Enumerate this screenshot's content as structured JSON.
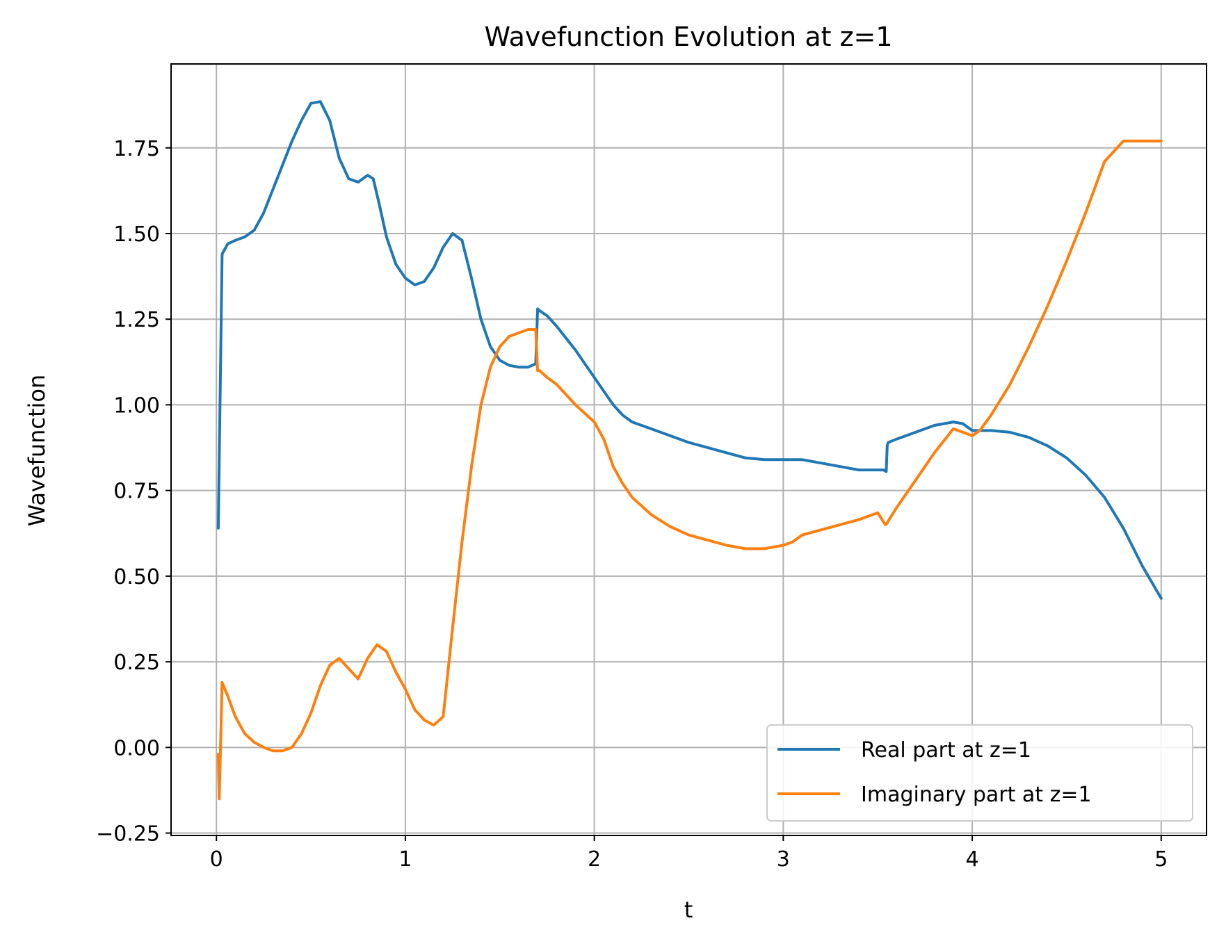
{
  "chart_data": {
    "type": "line",
    "title": "Wavefunction Evolution at z=1",
    "xlabel": "t",
    "ylabel": "Wavefunction",
    "xlim": [
      -0.24,
      5.24
    ],
    "ylim": [
      -0.257,
      1.995
    ],
    "xticks": [
      0,
      1,
      2,
      3,
      4,
      5
    ],
    "xtick_labels": [
      "0",
      "1",
      "2",
      "3",
      "4",
      "5"
    ],
    "yticks": [
      -0.25,
      0,
      0.25,
      0.5,
      0.75,
      1.0,
      1.25,
      1.5,
      1.75
    ],
    "ytick_labels": [
      "−0.25",
      "0.00",
      "0.25",
      "0.50",
      "0.75",
      "1.00",
      "1.25",
      "1.50",
      "1.75"
    ],
    "grid": true,
    "legend_position": "lower-right",
    "series": [
      {
        "name": "Real part at z=1",
        "color": "#1f77b4",
        "x": [
          0.01,
          0.03,
          0.06,
          0.1,
          0.15,
          0.2,
          0.25,
          0.3,
          0.35,
          0.4,
          0.45,
          0.5,
          0.55,
          0.6,
          0.65,
          0.7,
          0.75,
          0.8,
          0.83,
          0.86,
          0.9,
          0.95,
          1.0,
          1.05,
          1.1,
          1.15,
          1.2,
          1.25,
          1.3,
          1.35,
          1.4,
          1.45,
          1.5,
          1.55,
          1.6,
          1.65,
          1.69,
          1.7,
          1.71,
          1.75,
          1.8,
          1.9,
          2.0,
          2.1,
          2.15,
          2.2,
          2.3,
          2.5,
          2.7,
          2.8,
          2.9,
          3.0,
          3.1,
          3.2,
          3.3,
          3.4,
          3.5,
          3.53,
          3.545,
          3.55,
          3.555,
          3.6,
          3.7,
          3.8,
          3.9,
          3.95,
          4.0,
          4.05,
          4.1,
          4.2,
          4.3,
          4.4,
          4.5,
          4.6,
          4.7,
          4.8,
          4.9,
          5.0
        ],
        "y": [
          0.64,
          1.44,
          1.47,
          1.48,
          1.49,
          1.51,
          1.56,
          1.63,
          1.7,
          1.77,
          1.83,
          1.88,
          1.885,
          1.83,
          1.72,
          1.66,
          1.65,
          1.67,
          1.66,
          1.59,
          1.49,
          1.41,
          1.37,
          1.35,
          1.36,
          1.4,
          1.46,
          1.5,
          1.48,
          1.37,
          1.25,
          1.17,
          1.13,
          1.115,
          1.11,
          1.11,
          1.12,
          1.28,
          1.275,
          1.26,
          1.23,
          1.16,
          1.08,
          1.0,
          0.97,
          0.95,
          0.93,
          0.89,
          0.86,
          0.845,
          0.84,
          0.84,
          0.84,
          0.83,
          0.82,
          0.81,
          0.81,
          0.81,
          0.805,
          0.88,
          0.89,
          0.9,
          0.92,
          0.94,
          0.95,
          0.945,
          0.925,
          0.925,
          0.925,
          0.92,
          0.905,
          0.88,
          0.845,
          0.795,
          0.73,
          0.64,
          0.53,
          0.435
        ]
      },
      {
        "name": "Imaginary part at z=1",
        "color": "#ff7f0e",
        "x": [
          0.01,
          0.015,
          0.03,
          0.06,
          0.1,
          0.15,
          0.2,
          0.25,
          0.3,
          0.35,
          0.4,
          0.45,
          0.5,
          0.55,
          0.6,
          0.65,
          0.7,
          0.75,
          0.8,
          0.85,
          0.9,
          0.95,
          1.0,
          1.05,
          1.1,
          1.15,
          1.2,
          1.25,
          1.3,
          1.35,
          1.4,
          1.45,
          1.5,
          1.55,
          1.6,
          1.65,
          1.69,
          1.7,
          1.71,
          1.75,
          1.8,
          1.9,
          2.0,
          2.05,
          2.1,
          2.15,
          2.2,
          2.3,
          2.4,
          2.5,
          2.6,
          2.7,
          2.8,
          2.9,
          3.0,
          3.05,
          3.1,
          3.2,
          3.3,
          3.4,
          3.5,
          3.54,
          3.55,
          3.56,
          3.6,
          3.7,
          3.8,
          3.9,
          4.0,
          4.04,
          4.06,
          4.1,
          4.2,
          4.3,
          4.4,
          4.5,
          4.6,
          4.7,
          4.8,
          4.9,
          5.0
        ],
        "y": [
          -0.02,
          -0.15,
          0.19,
          0.15,
          0.09,
          0.04,
          0.015,
          0.0,
          -0.01,
          -0.01,
          0.0,
          0.04,
          0.1,
          0.18,
          0.24,
          0.26,
          0.23,
          0.2,
          0.26,
          0.3,
          0.28,
          0.22,
          0.17,
          0.11,
          0.08,
          0.065,
          0.09,
          0.35,
          0.6,
          0.82,
          1.0,
          1.11,
          1.17,
          1.2,
          1.21,
          1.22,
          1.22,
          1.1,
          1.1,
          1.08,
          1.06,
          1.0,
          0.95,
          0.9,
          0.82,
          0.77,
          0.73,
          0.68,
          0.645,
          0.62,
          0.605,
          0.59,
          0.58,
          0.58,
          0.59,
          0.6,
          0.62,
          0.635,
          0.65,
          0.665,
          0.685,
          0.65,
          0.655,
          0.665,
          0.7,
          0.78,
          0.86,
          0.93,
          0.91,
          0.925,
          0.94,
          0.97,
          1.06,
          1.17,
          1.29,
          1.42,
          1.56,
          1.71,
          1.77,
          1.77,
          1.77
        ]
      }
    ]
  }
}
